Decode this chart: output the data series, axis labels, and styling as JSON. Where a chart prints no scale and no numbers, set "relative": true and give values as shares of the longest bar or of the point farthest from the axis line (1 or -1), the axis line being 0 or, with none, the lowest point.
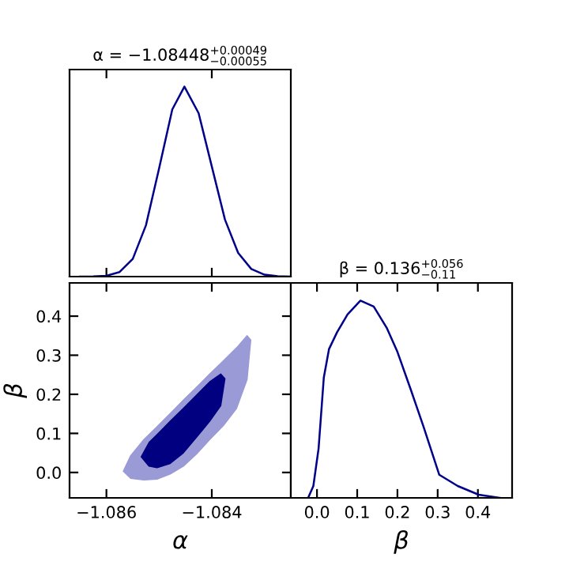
{
  "chart_data": [
    {
      "type": "line",
      "title": "α = −1.08448$^{+0.00049}$$_{−0.00055}$",
      "relative": true,
      "tick_labels": false,
      "xlim": [
        -1.0867,
        -1.0825
      ],
      "xticks": [
        {
          "value": -1.086,
          "label": null
        },
        {
          "value": -1.084,
          "label": null
        }
      ],
      "series": [
        {
          "color": "#00008b",
          "x": [
            -1.0865,
            -1.08625,
            -1.086,
            -1.08575,
            -1.0855,
            -1.08525,
            -1.085,
            -1.08475,
            -1.08452,
            -1.08425,
            -1.084,
            -1.08375,
            -1.0835,
            -1.08325,
            -1.083,
            -1.08275,
            -1.0825
          ],
          "values": [
            0,
            0.0006,
            0.0045,
            0.024,
            0.093,
            0.27,
            0.57,
            0.88,
            1.0,
            0.86,
            0.58,
            0.3,
            0.125,
            0.04,
            0.01,
            0.002,
            0
          ]
        }
      ]
    },
    {
      "type": "area",
      "xlabel": "α",
      "ylabel": "β",
      "xlim": [
        -1.0867,
        -1.0825
      ],
      "xticks": [
        {
          "value": -1.086,
          "label": "−1.086"
        },
        {
          "value": -1.084,
          "label": "−1.084"
        }
      ],
      "ylim": [
        -0.065,
        0.485
      ],
      "yticks": [
        {
          "value": 0,
          "label": "0.0"
        },
        {
          "value": 0.1,
          "label": "0.1"
        },
        {
          "value": 0.2,
          "label": "0.2"
        },
        {
          "value": 0.3,
          "label": "0.3"
        },
        {
          "value": 0.4,
          "label": "0.4"
        }
      ],
      "series": [
        {
          "color": "#9a9ad6",
          "x": [
            -1.08568,
            -1.08554,
            -1.08529,
            -1.08504,
            -1.08479,
            -1.08454,
            -1.08429,
            -1.08404,
            -1.08378,
            -1.08353,
            -1.08333,
            -1.08326,
            -1.08333,
            -1.08353,
            -1.08378,
            -1.08404,
            -1.08429,
            -1.08454,
            -1.08479,
            -1.08504,
            -1.08529,
            -1.08554
          ],
          "values": [
            0.003,
            0.043,
            0.084,
            0.117,
            0.151,
            0.185,
            0.218,
            0.252,
            0.286,
            0.319,
            0.35,
            0.339,
            0.238,
            0.164,
            0.12,
            0.084,
            0.047,
            0.016,
            -0.004,
            -0.017,
            -0.019,
            -0.015
          ]
        },
        {
          "color": "#000080",
          "x": [
            -1.08534,
            -1.08519,
            -1.08504,
            -1.08479,
            -1.08454,
            -1.08429,
            -1.08404,
            -1.08383,
            -1.08375,
            -1.08383,
            -1.08404,
            -1.08429,
            -1.08454,
            -1.08479,
            -1.08504,
            -1.08519
          ],
          "values": [
            0.04,
            0.077,
            0.097,
            0.131,
            0.164,
            0.198,
            0.232,
            0.252,
            0.24,
            0.171,
            0.131,
            0.09,
            0.05,
            0.023,
            0.012,
            0.016
          ]
        }
      ]
    },
    {
      "type": "line",
      "title": "β = 0.136$^{+0.056}$$_{−0.11}$",
      "xlabel": "β",
      "relative": true,
      "tick_labels": "x",
      "xlim": [
        -0.065,
        0.485
      ],
      "xticks": [
        {
          "value": 0,
          "label": "0.0"
        },
        {
          "value": 0.1,
          "label": "0.1"
        },
        {
          "value": 0.2,
          "label": "0.2"
        },
        {
          "value": 0.3,
          "label": "0.3"
        },
        {
          "value": 0.4,
          "label": "0.4"
        }
      ],
      "series": [
        {
          "color": "#00008b",
          "x": [
            -0.022,
            -0.009,
            0.004,
            0.017,
            0.03,
            0.05,
            0.076,
            0.108,
            0.141,
            0.174,
            0.2,
            0.233,
            0.265,
            0.304,
            0.35,
            0.402,
            0.455
          ],
          "values": [
            0,
            0.06,
            0.25,
            0.61,
            0.755,
            0.84,
            0.93,
            1.0,
            0.97,
            0.86,
            0.74,
            0.55,
            0.36,
            0.117,
            0.06,
            0.016,
            0
          ]
        }
      ]
    }
  ]
}
